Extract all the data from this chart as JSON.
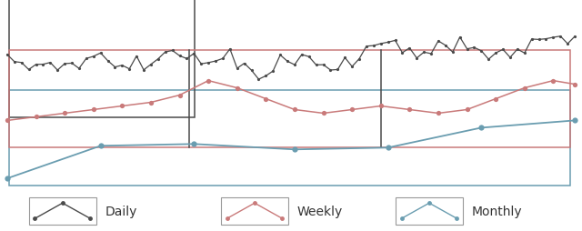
{
  "daily_color": "#4a4a4a",
  "weekly_color": "#c97a7a",
  "monthly_color": "#6a9db0",
  "fig_bg": "#ffffff",
  "legend_labels": [
    "Daily",
    "Weekly",
    "Monthly"
  ],
  "legend_colors": [
    "#4a4a4a",
    "#c97a7a",
    "#6a9db0"
  ],
  "daily_x": [
    0,
    1,
    2,
    3,
    4,
    5,
    6,
    7,
    8,
    9,
    10,
    11,
    12,
    13,
    14,
    15,
    16,
    17,
    18,
    19,
    20,
    21,
    22,
    23,
    24,
    25,
    26,
    27,
    28,
    29,
    30,
    31,
    32,
    33,
    34,
    35,
    36,
    37,
    38,
    39,
    40,
    41,
    42,
    43,
    44,
    45,
    46,
    47,
    48,
    49,
    50,
    51,
    52,
    53,
    54,
    55,
    56,
    57,
    58,
    59,
    60,
    61,
    62,
    63,
    64,
    65,
    66,
    67,
    68,
    69,
    70,
    71,
    72,
    73,
    74,
    75,
    76,
    77,
    78,
    79
  ],
  "weekly_x": [
    0,
    4,
    8,
    12,
    16,
    20,
    24,
    28,
    32,
    36,
    40,
    44,
    48,
    52,
    56,
    60,
    64,
    68,
    72,
    76,
    79
  ],
  "monthly_x": [
    0,
    13,
    26,
    40,
    53,
    66,
    79
  ],
  "panel_dividers": [
    26,
    53
  ],
  "xlim": [
    0,
    79
  ]
}
